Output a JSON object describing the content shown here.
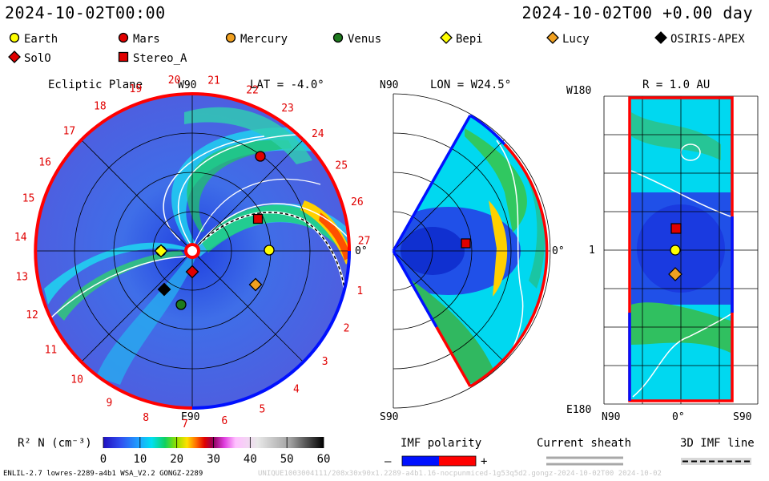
{
  "header": {
    "left_time": "2024-10-02T00:00",
    "right_time": "2024-10-02T00 +0.00 day"
  },
  "legend_items": [
    {
      "label": "Earth",
      "marker": "circle",
      "color": "#ffff00"
    },
    {
      "label": "Mars",
      "marker": "circle",
      "color": "#e00000"
    },
    {
      "label": "Mercury",
      "marker": "circle",
      "color": "#f0a020"
    },
    {
      "label": "Venus",
      "marker": "circle",
      "color": "#1e7a1e"
    },
    {
      "label": "Bepi",
      "marker": "diamond",
      "color": "#ffff00"
    },
    {
      "label": "Lucy",
      "marker": "diamond",
      "color": "#f0a020"
    },
    {
      "label": "OSIRIS-APEX",
      "marker": "diamond",
      "color": "#000000"
    },
    {
      "label": "SolO",
      "marker": "diamond",
      "color": "#e00000"
    },
    {
      "label": "Stereo_A",
      "marker": "square",
      "color": "#e00000"
    }
  ],
  "panels": {
    "ecliptic": {
      "title": "Ecliptic Plane",
      "lat_label": "LAT = -4.0°",
      "top_label": "W90",
      "bottom_label": "E90",
      "right_label": "0°",
      "day_labels": [
        "1",
        "2",
        "3",
        "4",
        "5",
        "6",
        "7",
        "8",
        "9",
        "10",
        "11",
        "12",
        "13",
        "14",
        "15",
        "16",
        "17",
        "18",
        "19",
        "20",
        "21",
        "22",
        "23",
        "24",
        "25",
        "26",
        "27"
      ]
    },
    "meridional": {
      "lon_label": "LON = W24.5°",
      "top_label": "N90",
      "bottom_label": "S90",
      "right_label": "0°"
    },
    "radial": {
      "r_label": "R = 1.0 AU",
      "top_label": "W180",
      "bottom_label": "E180",
      "mid_label": "1",
      "x_labels": [
        "N90",
        "0°",
        "S90"
      ]
    }
  },
  "colorbar": {
    "label": "R² N (cm⁻³)",
    "ticks": [
      "0",
      "10",
      "20",
      "30",
      "40",
      "50",
      "60"
    ],
    "range": [
      0,
      60
    ]
  },
  "imf_polarity": {
    "title": "IMF polarity",
    "minus": "–",
    "plus": "+",
    "colors": [
      "#0010ff",
      "#ff0000"
    ]
  },
  "current_sheath": {
    "title": "Current sheath"
  },
  "imf_line": {
    "title": "3D IMF line"
  },
  "footer": {
    "left": "ENLIL-2.7 lowres-2289-a4b1 WSA_V2.2 GONGZ-2289",
    "right": "UNIQUE1003004111/208x30x90x1.2289-a4b1.16-nocpunmiced-1g53q5d2.gongz-2024-10-02T00 2024-10-02"
  },
  "chart_data": {
    "type": "heatmap",
    "quantity": "R² N (cm⁻³)",
    "color_range": [
      0,
      60
    ],
    "bodies": [
      {
        "name": "Earth",
        "panel": "ecliptic"
      },
      {
        "name": "Mars",
        "panel": "ecliptic"
      },
      {
        "name": "Mercury",
        "panel": "ecliptic"
      },
      {
        "name": "Venus",
        "panel": "ecliptic"
      },
      {
        "name": "Bepi",
        "panel": "ecliptic"
      },
      {
        "name": "Lucy",
        "panel": "ecliptic"
      },
      {
        "name": "OSIRIS-APEX",
        "panel": "ecliptic"
      },
      {
        "name": "SolO",
        "panel": "ecliptic"
      },
      {
        "name": "Stereo_A",
        "panel": "ecliptic"
      }
    ]
  }
}
